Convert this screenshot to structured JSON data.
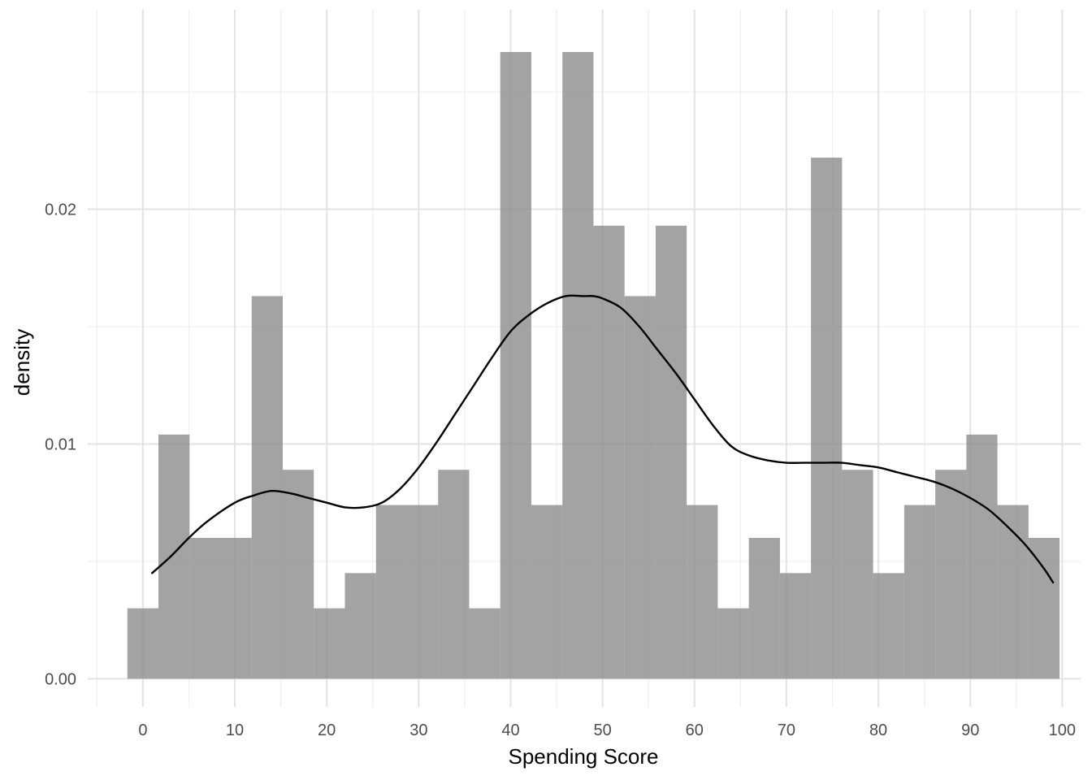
{
  "chart_data": {
    "type": "bar",
    "subtype": "histogram-with-density",
    "title": "",
    "xlabel": "Spending Score",
    "ylabel": "density",
    "xlim": [
      -6,
      102
    ],
    "ylim": [
      -0.0012,
      0.0285
    ],
    "x_ticks": [
      0,
      10,
      20,
      30,
      40,
      50,
      60,
      70,
      80,
      90,
      100
    ],
    "y_ticks": [
      0.0,
      0.01,
      0.02
    ],
    "y_tick_labels": [
      "0.00",
      "0.01",
      "0.02"
    ],
    "grid": true,
    "bin_width": 3.38,
    "bins": [
      {
        "x0": -1.69,
        "x1": 1.69,
        "density": 0.003
      },
      {
        "x0": 1.69,
        "x1": 5.07,
        "density": 0.0104
      },
      {
        "x0": 5.07,
        "x1": 8.45,
        "density": 0.006
      },
      {
        "x0": 8.45,
        "x1": 11.83,
        "density": 0.006
      },
      {
        "x0": 11.83,
        "x1": 15.21,
        "density": 0.0163
      },
      {
        "x0": 15.21,
        "x1": 18.59,
        "density": 0.0089
      },
      {
        "x0": 18.59,
        "x1": 21.97,
        "density": 0.003
      },
      {
        "x0": 21.97,
        "x1": 25.35,
        "density": 0.0045
      },
      {
        "x0": 25.35,
        "x1": 28.73,
        "density": 0.0074
      },
      {
        "x0": 28.73,
        "x1": 32.11,
        "density": 0.0074
      },
      {
        "x0": 32.11,
        "x1": 35.49,
        "density": 0.0089
      },
      {
        "x0": 35.49,
        "x1": 38.87,
        "density": 0.003
      },
      {
        "x0": 38.87,
        "x1": 42.25,
        "density": 0.0267
      },
      {
        "x0": 42.25,
        "x1": 45.63,
        "density": 0.0074
      },
      {
        "x0": 45.63,
        "x1": 49.01,
        "density": 0.0267
      },
      {
        "x0": 49.01,
        "x1": 52.39,
        "density": 0.0193
      },
      {
        "x0": 52.39,
        "x1": 55.77,
        "density": 0.0163
      },
      {
        "x0": 55.77,
        "x1": 59.15,
        "density": 0.0193
      },
      {
        "x0": 59.15,
        "x1": 62.53,
        "density": 0.0074
      },
      {
        "x0": 62.53,
        "x1": 65.91,
        "density": 0.003
      },
      {
        "x0": 65.91,
        "x1": 69.29,
        "density": 0.006
      },
      {
        "x0": 69.29,
        "x1": 72.67,
        "density": 0.0045
      },
      {
        "x0": 72.67,
        "x1": 76.05,
        "density": 0.0222
      },
      {
        "x0": 76.05,
        "x1": 79.43,
        "density": 0.0089
      },
      {
        "x0": 79.43,
        "x1": 82.81,
        "density": 0.0045
      },
      {
        "x0": 82.81,
        "x1": 86.19,
        "density": 0.0074
      },
      {
        "x0": 86.19,
        "x1": 89.57,
        "density": 0.0089
      },
      {
        "x0": 89.57,
        "x1": 92.95,
        "density": 0.0104
      },
      {
        "x0": 92.95,
        "x1": 96.33,
        "density": 0.0074
      },
      {
        "x0": 96.33,
        "x1": 99.71,
        "density": 0.006
      }
    ],
    "density_curve": {
      "x": [
        1,
        3,
        5,
        7,
        10,
        12,
        14,
        16,
        18,
        20,
        22,
        24,
        26,
        28,
        30,
        32,
        34,
        36,
        38,
        40,
        42,
        44,
        46,
        48,
        49,
        50,
        52,
        54,
        56,
        58,
        60,
        62,
        64,
        66,
        68,
        70,
        72,
        74,
        76,
        78,
        80,
        82,
        84,
        86,
        88,
        90,
        92,
        94,
        96,
        98,
        99
      ],
      "y": [
        0.0045,
        0.0052,
        0.006,
        0.0067,
        0.0075,
        0.0078,
        0.008,
        0.0079,
        0.0077,
        0.0075,
        0.0073,
        0.0073,
        0.0075,
        0.0081,
        0.009,
        0.0101,
        0.0113,
        0.0125,
        0.0137,
        0.0148,
        0.0155,
        0.016,
        0.0163,
        0.0163,
        0.0163,
        0.0162,
        0.0158,
        0.015,
        0.014,
        0.013,
        0.0119,
        0.0108,
        0.0099,
        0.0095,
        0.0093,
        0.0092,
        0.0092,
        0.0092,
        0.0092,
        0.0091,
        0.009,
        0.0088,
        0.0086,
        0.0084,
        0.0081,
        0.0077,
        0.0072,
        0.0065,
        0.0057,
        0.0047,
        0.0041
      ]
    },
    "colors": {
      "bar_fill": "#8c8c8c",
      "bar_opacity": 0.8,
      "curve": "#000000",
      "grid_major": "#e3e3e3",
      "grid_minor": "#f0f0f0",
      "tick_text": "#4d4d4d",
      "axis_title": "#000000",
      "background": "#ffffff"
    }
  }
}
